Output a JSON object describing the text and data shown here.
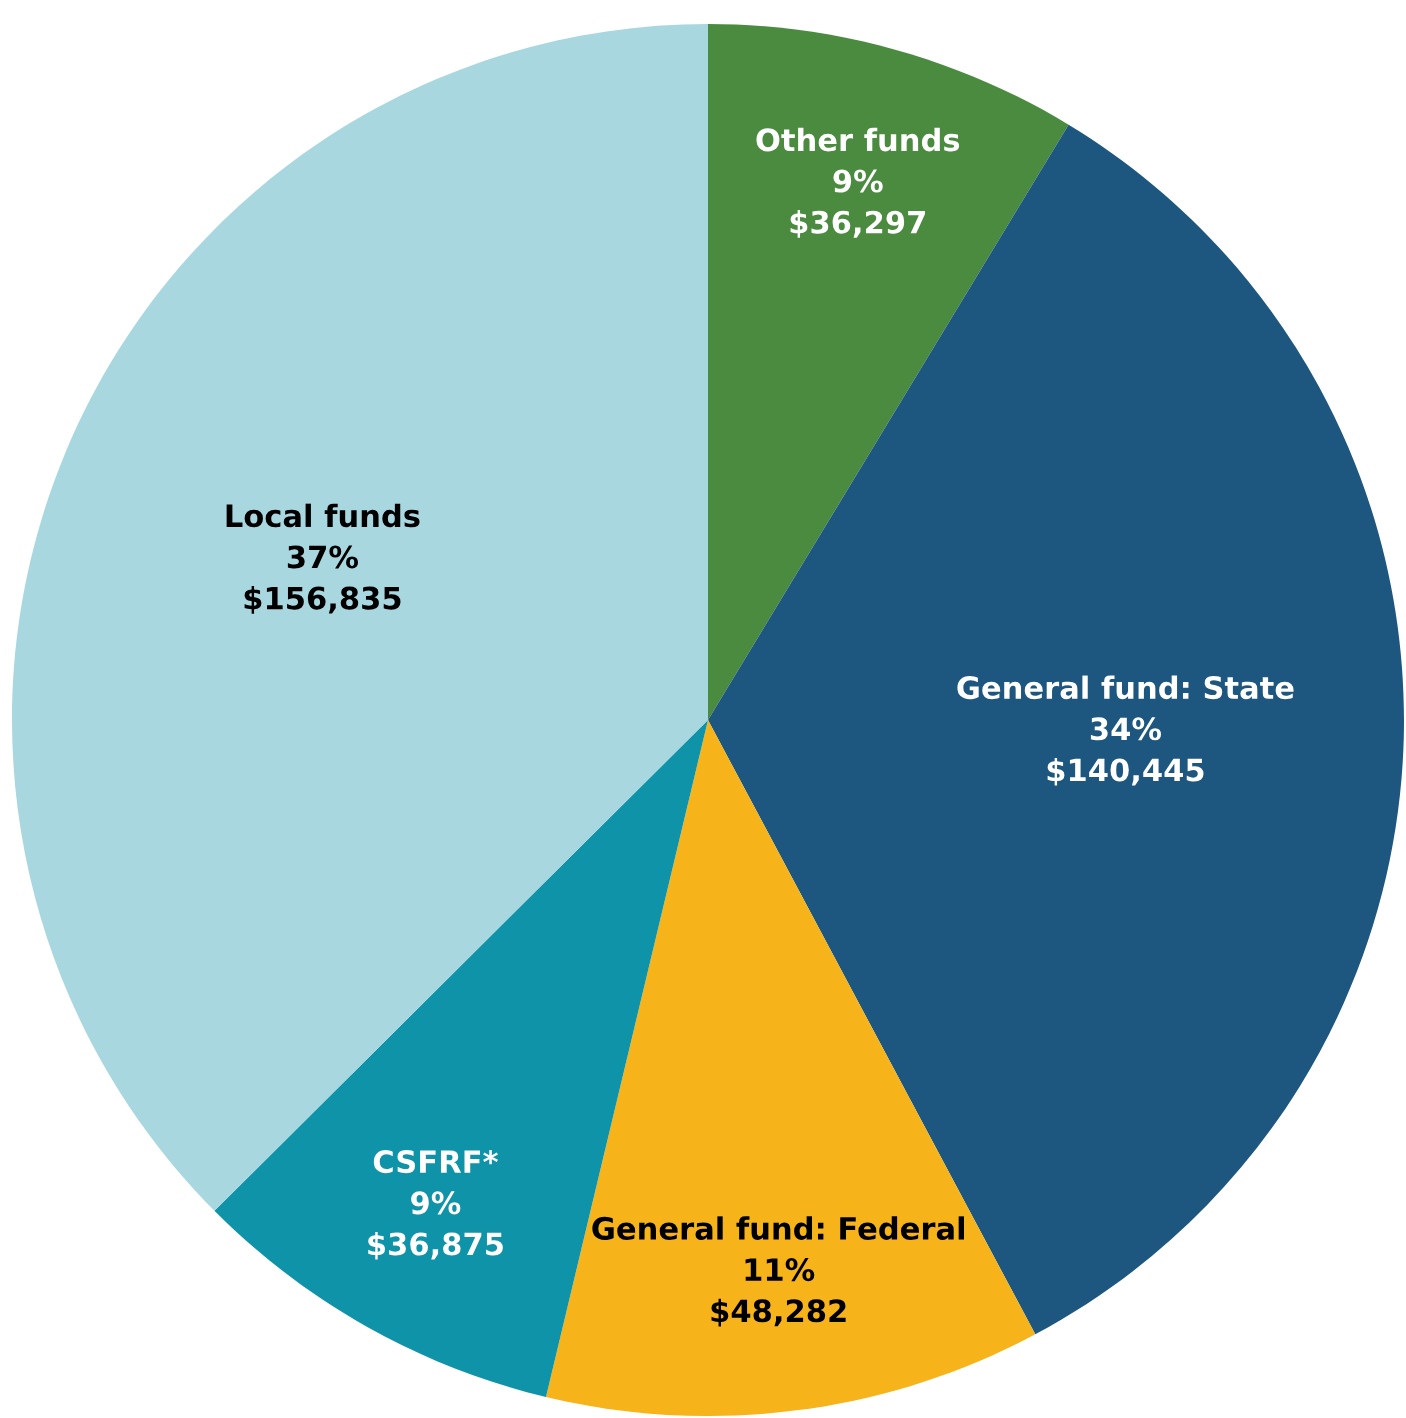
{
  "chart_data": {
    "type": "pie",
    "categories": [
      "Other funds",
      "General fund: State",
      "General fund: Federal",
      "CSFRF*",
      "Local funds"
    ],
    "values": [
      36297,
      140445,
      48282,
      36875,
      156835
    ],
    "value_labels": [
      "9%\n$36,297",
      "34%\n$140,445",
      "11%\n$48,282",
      "9%\n$36,875",
      "37%\n$156,835"
    ],
    "colors": [
      "#4a8b3f",
      "#1d5780",
      "#f6b31a",
      "#0e93a8",
      "#a9d7e0"
    ],
    "legend": false
  }
}
